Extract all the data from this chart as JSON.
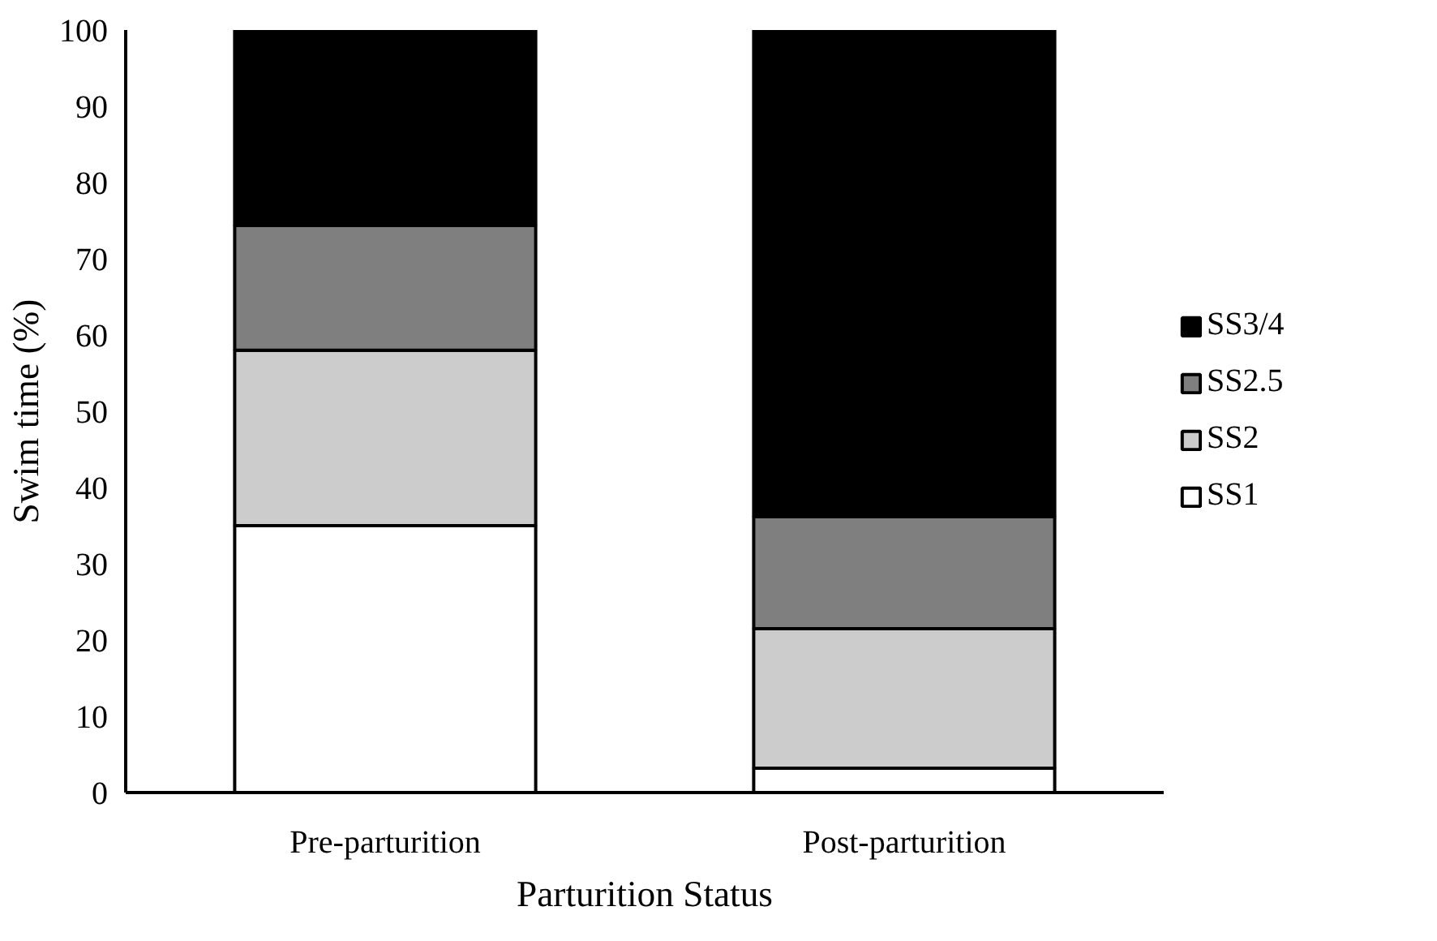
{
  "chart_data": {
    "type": "bar",
    "stacked": true,
    "xlabel": "Parturition Status",
    "ylabel": "Swim time (%)",
    "categories": [
      "Pre-parturition",
      "Post-parturition"
    ],
    "series": [
      {
        "name": "SS1",
        "color": "#ffffff",
        "values": [
          35.0,
          3.2
        ]
      },
      {
        "name": "SS2",
        "color": "#cccccc",
        "values": [
          23.0,
          18.3
        ]
      },
      {
        "name": "SS2.5",
        "color": "#7f7f7f",
        "values": [
          16.4,
          14.7
        ]
      },
      {
        "name": "SS3/4",
        "color": "#000000",
        "values": [
          25.6,
          63.8
        ]
      }
    ],
    "ylim": [
      0,
      100
    ],
    "yticks": [
      0,
      10,
      20,
      30,
      40,
      50,
      60,
      70,
      80,
      90,
      100
    ],
    "grid": false,
    "legend": "right"
  }
}
